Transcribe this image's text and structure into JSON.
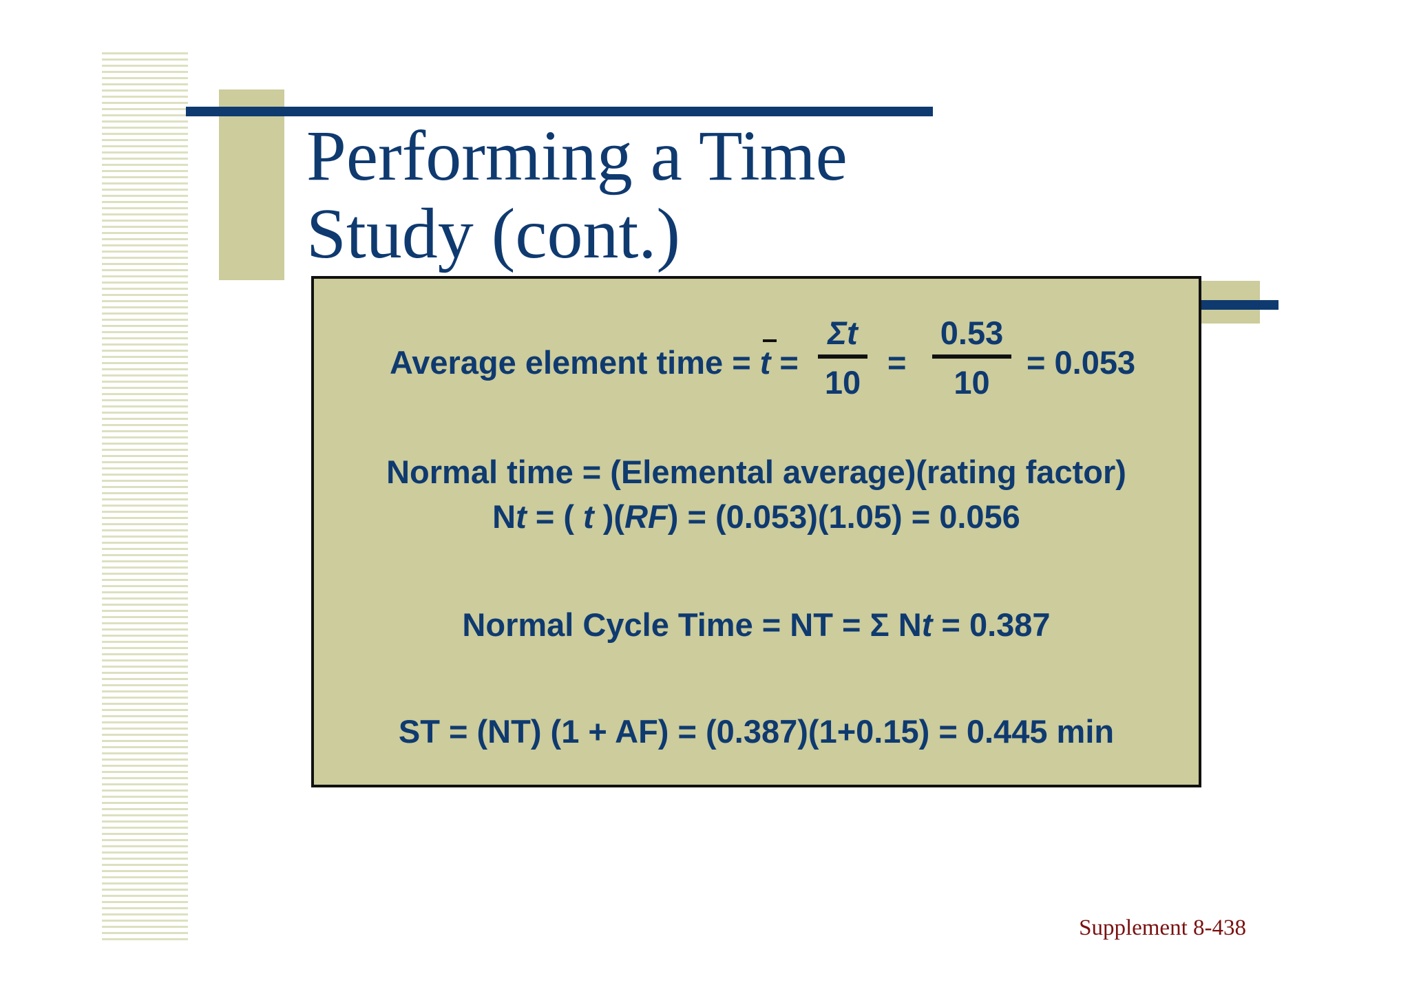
{
  "title": {
    "line1": "Performing a Time",
    "line2": "Study (cont.)"
  },
  "formulas": {
    "average": {
      "label": "Average element time = ",
      "symbol": "t",
      "equals1": " =",
      "frac1_num": "Σt",
      "frac1_den": "10",
      "equals2": "=",
      "frac2_num": "0.53",
      "frac2_den": "10",
      "result": "= 0.053"
    },
    "normal": {
      "line1": "Normal time = (Elemental average)(rating factor)",
      "line2_pre": "N",
      "line2_t": "t",
      "line2_mid1": " = ( ",
      "line2_t2": "t",
      "line2_mid2": " )(",
      "line2_rf": "RF",
      "line2_end": ") = (0.053)(1.05) = 0.056"
    },
    "cycle": {
      "pre": "Normal Cycle Time = NT = Σ N",
      "t": "t",
      "post": " = 0.387"
    },
    "standard": {
      "text": "ST = (NT) (1 + AF) = (0.387)(1+0.15) = 0.445 min"
    }
  },
  "footer": {
    "text": "Supplement 8-438"
  },
  "colors": {
    "navy": "#0f3a70",
    "olive": "#cccc9c",
    "footer": "#7a1010"
  }
}
